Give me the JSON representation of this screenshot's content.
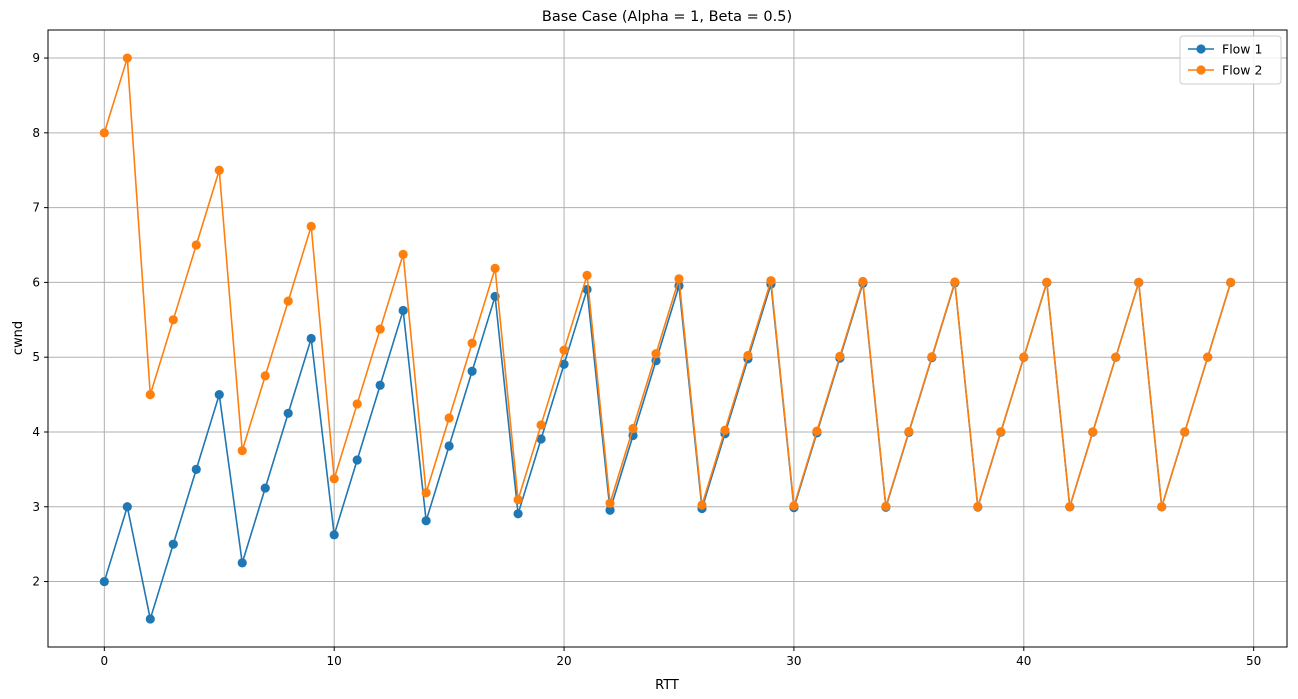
{
  "chart_data": {
    "type": "line",
    "title": "Base Case (Alpha = 1, Beta = 0.5)",
    "xlabel": "RTT",
    "ylabel": "cwnd",
    "xlim": [
      -2.45,
      51.45
    ],
    "ylim": [
      1.125,
      9.375
    ],
    "xticks": [
      0,
      10,
      20,
      30,
      40,
      50
    ],
    "yticks": [
      2,
      3,
      4,
      5,
      6,
      7,
      8,
      9
    ],
    "grid": true,
    "legend_position": "top-right",
    "marker": "circle",
    "x": [
      0,
      1,
      2,
      3,
      4,
      5,
      6,
      7,
      8,
      9,
      10,
      11,
      12,
      13,
      14,
      15,
      16,
      17,
      18,
      19,
      20,
      21,
      22,
      23,
      24,
      25,
      26,
      27,
      28,
      29,
      30,
      31,
      32,
      33,
      34,
      35,
      36,
      37,
      38,
      39,
      40,
      41,
      42,
      43,
      44,
      45,
      46,
      47,
      48,
      49
    ],
    "series": [
      {
        "name": "Flow 1",
        "color": "#1f77b4",
        "values": [
          2,
          3,
          1.5,
          2.5,
          3.5,
          4.5,
          2.25,
          3.25,
          4.25,
          5.25,
          2.625,
          3.625,
          4.625,
          5.625,
          2.8125,
          3.8125,
          4.8125,
          5.8125,
          2.906,
          3.906,
          4.906,
          5.906,
          2.953,
          3.953,
          4.953,
          5.953,
          2.977,
          3.977,
          4.977,
          5.977,
          2.988,
          3.988,
          4.988,
          5.988,
          2.994,
          3.994,
          4.994,
          5.994,
          2.997,
          3.997,
          4.997,
          5.997,
          2.9985,
          3.9985,
          4.9985,
          5.9985,
          2.999,
          3.999,
          4.999,
          5.999
        ]
      },
      {
        "name": "Flow 2",
        "color": "#ff7f0e",
        "values": [
          8,
          9,
          4.5,
          5.5,
          6.5,
          7.5,
          3.75,
          4.75,
          5.75,
          6.75,
          3.375,
          4.375,
          5.375,
          6.375,
          3.1875,
          4.1875,
          5.1875,
          6.1875,
          3.094,
          4.094,
          5.094,
          6.094,
          3.047,
          4.047,
          5.047,
          6.047,
          3.023,
          4.023,
          5.023,
          6.023,
          3.012,
          4.012,
          5.012,
          6.012,
          3.006,
          4.006,
          5.006,
          6.006,
          3.003,
          4.003,
          5.003,
          6.003,
          3.0015,
          4.0015,
          5.0015,
          6.0015,
          3.001,
          4.001,
          5.001,
          6.001
        ]
      }
    ]
  }
}
